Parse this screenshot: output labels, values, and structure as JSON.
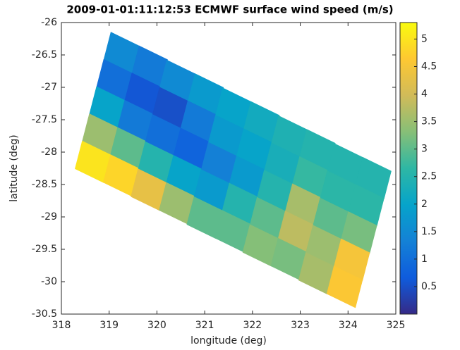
{
  "chart_data": {
    "type": "scatter",
    "title": "2009-01-01:11:12:53 ECMWF surface wind speed (m/s)",
    "x_label": "longitude (deg)",
    "y_label": "latitude (deg)",
    "xlim": [
      318,
      325
    ],
    "xticks": [
      318,
      319,
      320,
      321,
      322,
      323,
      324,
      325
    ],
    "ylim": [
      -30.5,
      -26
    ],
    "yticks": [
      -26,
      -26.5,
      -27,
      -27.5,
      -28,
      -28.5,
      -29,
      -29.5,
      -30,
      -30.5
    ],
    "colormap": "parula",
    "clim": [
      0,
      5.3
    ],
    "cticks": [
      0.5,
      1,
      1.5,
      2,
      2.5,
      3,
      3.5,
      4,
      4.5,
      5
    ],
    "x": [
      319.26,
      319.11,
      318.96,
      318.81,
      318.66,
      319.85,
      319.7,
      319.55,
      319.4,
      319.25,
      320.43,
      320.28,
      320.13,
      319.98,
      319.83,
      321.02,
      320.87,
      320.72,
      320.57,
      320.42,
      321.6,
      321.45,
      321.3,
      321.15,
      321.0,
      322.19,
      322.04,
      321.89,
      321.74,
      321.59,
      322.77,
      322.62,
      322.47,
      322.32,
      322.17,
      323.36,
      323.21,
      323.06,
      322.91,
      322.76,
      323.94,
      323.79,
      323.64,
      323.49,
      323.34,
      324.53,
      324.38,
      324.23,
      324.08,
      323.93
    ],
    "y": [
      -26.47,
      -26.89,
      -27.31,
      -27.73,
      -28.15,
      -26.68,
      -27.1,
      -27.52,
      -27.94,
      -28.36,
      -26.9,
      -27.32,
      -27.74,
      -28.16,
      -28.58,
      -27.11,
      -27.53,
      -27.95,
      -28.37,
      -28.79,
      -27.33,
      -27.75,
      -28.17,
      -28.59,
      -29.01,
      -27.54,
      -27.96,
      -28.38,
      -28.8,
      -29.22,
      -27.76,
      -28.18,
      -28.6,
      -29.02,
      -29.44,
      -27.97,
      -28.39,
      -28.81,
      -29.23,
      -29.65,
      -28.19,
      -28.61,
      -29.03,
      -29.45,
      -29.87,
      -28.4,
      -28.82,
      -29.24,
      -29.66,
      -30.08
    ],
    "values": [
      1.5,
      1.0,
      2.0,
      3.5,
      5.0,
      1.2,
      0.6,
      1.2,
      3.0,
      4.8,
      1.5,
      0.5,
      1.0,
      2.5,
      4.3,
      1.8,
      1.2,
      0.8,
      2.0,
      3.5,
      2.0,
      1.8,
      1.3,
      1.8,
      3.0,
      2.2,
      2.0,
      1.8,
      2.5,
      3.0,
      2.4,
      2.3,
      2.5,
      3.0,
      3.3,
      2.5,
      2.7,
      3.6,
      3.8,
      3.2,
      2.5,
      2.6,
      3.0,
      3.5,
      3.6,
      2.5,
      2.6,
      3.2,
      4.5,
      4.6
    ]
  }
}
